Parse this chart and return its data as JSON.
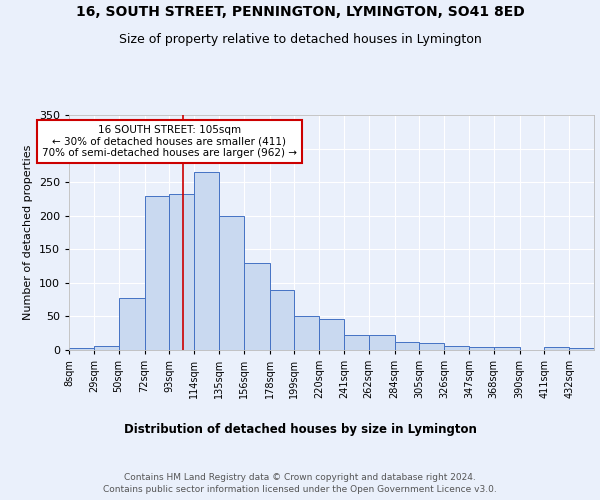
{
  "title": "16, SOUTH STREET, PENNINGTON, LYMINGTON, SO41 8ED",
  "subtitle": "Size of property relative to detached houses in Lymington",
  "xlabel": "Distribution of detached houses by size in Lymington",
  "ylabel": "Number of detached properties",
  "bar_labels": [
    "8sqm",
    "29sqm",
    "50sqm",
    "72sqm",
    "93sqm",
    "114sqm",
    "135sqm",
    "156sqm",
    "178sqm",
    "199sqm",
    "220sqm",
    "241sqm",
    "262sqm",
    "284sqm",
    "305sqm",
    "326sqm",
    "347sqm",
    "368sqm",
    "390sqm",
    "411sqm",
    "432sqm"
  ],
  "bar_values": [
    3,
    6,
    78,
    230,
    233,
    265,
    200,
    130,
    89,
    50,
    46,
    23,
    23,
    12,
    10,
    6,
    5,
    5,
    0,
    4,
    3
  ],
  "bar_color": "#c9d9f0",
  "bar_edge_color": "#4472c4",
  "vline_x": 105,
  "bin_edges": [
    8,
    29,
    50,
    72,
    93,
    114,
    135,
    156,
    178,
    199,
    220,
    241,
    262,
    284,
    305,
    326,
    347,
    368,
    390,
    411,
    432,
    453
  ],
  "annotation_text": "16 SOUTH STREET: 105sqm\n← 30% of detached houses are smaller (411)\n70% of semi-detached houses are larger (962) →",
  "annotation_box_color": "#ffffff",
  "annotation_box_edge_color": "#cc0000",
  "ylim": [
    0,
    350
  ],
  "yticks": [
    0,
    50,
    100,
    150,
    200,
    250,
    300,
    350
  ],
  "footer_text": "Contains HM Land Registry data © Crown copyright and database right 2024.\nContains public sector information licensed under the Open Government Licence v3.0.",
  "background_color": "#eaf0fb",
  "plot_background_color": "#eaf0fb",
  "grid_color": "#ffffff",
  "vline_color": "#cc0000"
}
